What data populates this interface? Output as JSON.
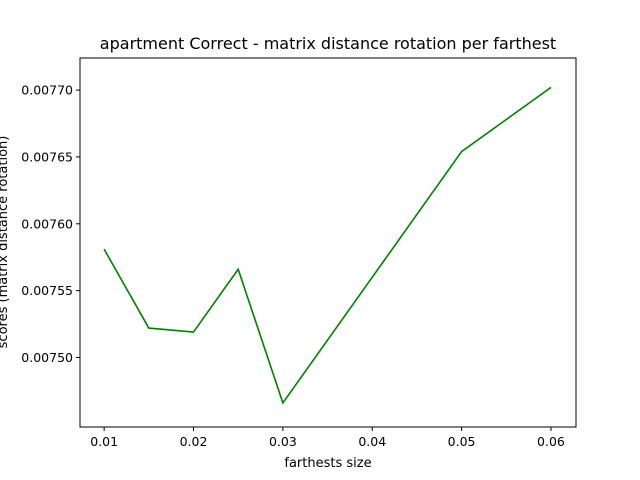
{
  "chart_data": {
    "type": "line",
    "title": "apartment Correct - matrix distance rotation per farthest",
    "xlabel": "farthests size",
    "ylabel": "scores (matrix distance rotation)",
    "x": [
      0.01,
      0.015,
      0.02,
      0.025,
      0.03,
      0.05,
      0.06
    ],
    "series": [
      {
        "color": "#008000",
        "values": [
          0.007581,
          0.007522,
          0.007519,
          0.007566,
          0.007466,
          0.007654,
          0.007702
        ]
      }
    ],
    "xlim": [
      0.0073,
      0.0628
    ],
    "ylim": [
      0.007448,
      0.007724
    ],
    "xticks": [
      0.01,
      0.02,
      0.03,
      0.04,
      0.05,
      0.06
    ],
    "xtick_labels": [
      "0.01",
      "0.02",
      "0.03",
      "0.04",
      "0.05",
      "0.06"
    ],
    "yticks": [
      0.0075,
      0.00755,
      0.0076,
      0.00765,
      0.0077
    ],
    "ytick_labels": [
      "0.00750",
      "0.00755",
      "0.00760",
      "0.00765",
      "0.00770"
    ],
    "grid": false,
    "legend": false
  }
}
